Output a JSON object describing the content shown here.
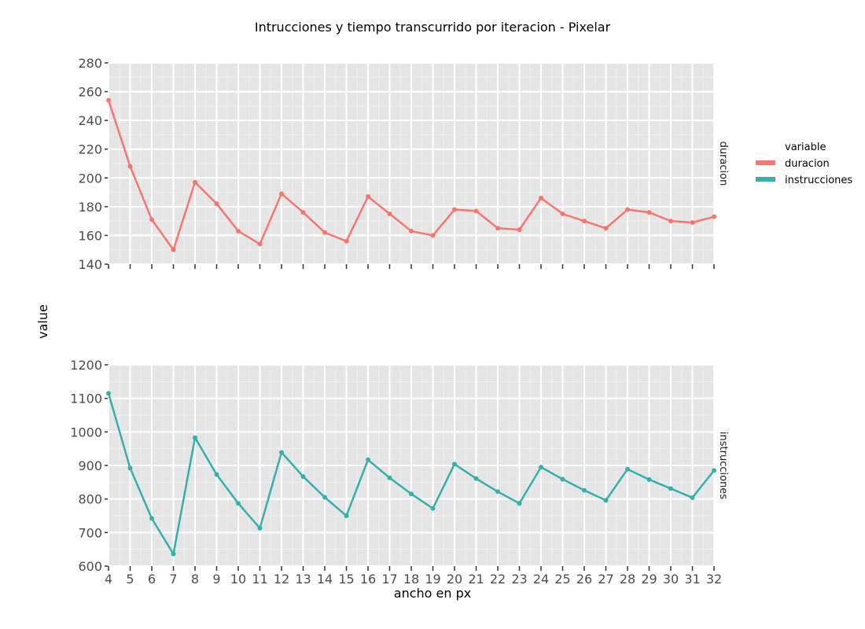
{
  "chart_data": {
    "type": "line",
    "title": "Intrucciones y tiempo transcurrido por iteracion - Pixelar",
    "xlabel": "ancho en px",
    "ylabel": "value",
    "x": [
      4,
      5,
      6,
      7,
      8,
      9,
      10,
      11,
      12,
      13,
      14,
      15,
      16,
      17,
      18,
      19,
      20,
      21,
      22,
      23,
      24,
      25,
      26,
      27,
      28,
      29,
      30,
      31,
      32
    ],
    "xlim": [
      4,
      32
    ],
    "legend": {
      "title": "variable",
      "position": "right",
      "entries": [
        {
          "label": "duracion",
          "color": "#f8766d"
        },
        {
          "label": "instrucciones",
          "color": "#35b0ab"
        }
      ]
    },
    "panels": [
      {
        "strip_label": "duracion",
        "series_label": "duracion",
        "color": "#f8766d",
        "ylim": [
          140,
          280
        ],
        "yticks": [
          140,
          160,
          180,
          200,
          220,
          240,
          260,
          280
        ],
        "values": [
          254,
          208,
          171,
          150,
          197,
          182,
          163,
          154,
          189,
          176,
          162,
          156,
          187,
          175,
          163,
          160,
          178,
          177,
          165,
          164,
          186,
          175,
          170,
          165,
          178,
          176,
          170,
          169,
          173
        ]
      },
      {
        "strip_label": "instrucciones",
        "series_label": "instrucciones",
        "color": "#35b0ab",
        "ylim": [
          600,
          1200
        ],
        "yticks": [
          600,
          700,
          800,
          900,
          1000,
          1100,
          1200
        ],
        "values": [
          1115,
          892,
          742,
          636,
          983,
          873,
          787,
          713,
          939,
          867,
          805,
          750,
          917,
          863,
          815,
          772,
          904,
          861,
          822,
          787,
          895,
          859,
          826,
          796,
          889,
          858,
          831,
          804,
          885
        ]
      }
    ],
    "grid": true
  }
}
